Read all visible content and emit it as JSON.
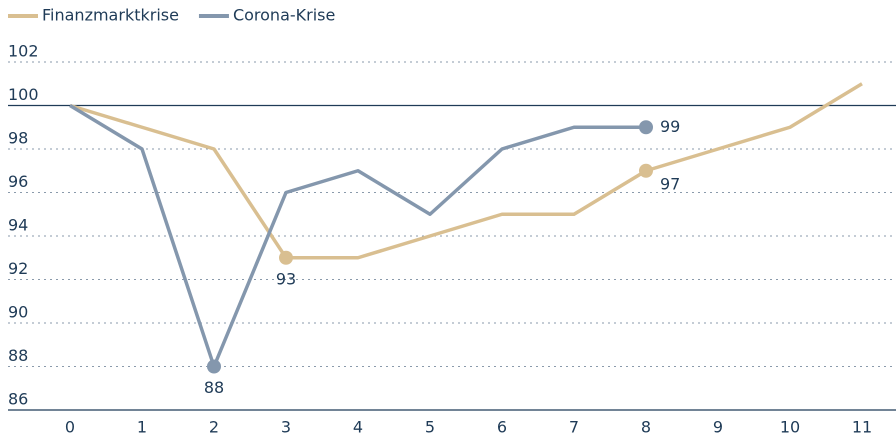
{
  "chart_data": {
    "type": "line",
    "x": [
      0,
      1,
      2,
      3,
      4,
      5,
      6,
      7,
      8,
      9,
      10,
      11
    ],
    "series": [
      {
        "name": "Finanzmarktkrise",
        "color": "#d9bf91",
        "values": [
          100,
          99,
          98,
          93,
          93,
          94,
          95,
          95,
          97,
          98,
          99,
          101
        ],
        "value_labels": [
          null,
          null,
          null,
          "93",
          null,
          null,
          null,
          null,
          "97",
          null,
          null,
          null
        ]
      },
      {
        "name": "Corona-Krise",
        "color": "#8497ad",
        "values": [
          100,
          98,
          88,
          96,
          97,
          95,
          98,
          99,
          99,
          null,
          null,
          null
        ],
        "value_labels": [
          null,
          null,
          "88",
          null,
          null,
          null,
          null,
          null,
          "99",
          null,
          null,
          null
        ]
      }
    ],
    "xlim": [
      0,
      11
    ],
    "xticks": [
      0,
      1,
      2,
      3,
      4,
      5,
      6,
      7,
      8,
      9,
      10,
      11
    ],
    "ylim": [
      86,
      102
    ],
    "yticks": [
      86,
      88,
      90,
      92,
      94,
      96,
      98,
      100,
      102
    ],
    "baseline": 100,
    "grid": true,
    "legend": "top-left"
  }
}
